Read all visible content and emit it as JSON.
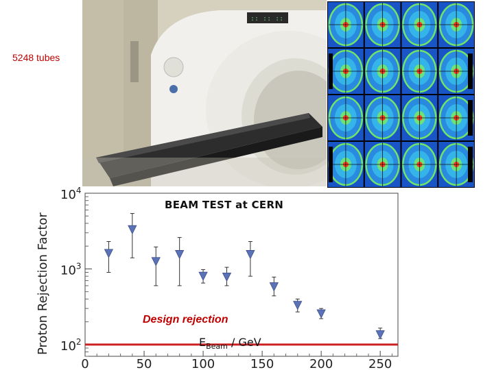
{
  "photo_label": "5248 tubes",
  "chart_data": {
    "type": "scatter",
    "title": "BEAM TEST at CERN",
    "ylabel": "Proton Rejection Factor",
    "xlabel_main": "E",
    "xlabel_sub": "Beam",
    "xlabel_rest": " / GeV",
    "log_y": true,
    "ylim": [
      70,
      10000
    ],
    "xlim": [
      0,
      265
    ],
    "x_ticks": [
      "0",
      "50",
      "100",
      "150",
      "200",
      "250"
    ],
    "y_ticks": [
      {
        "base": "10",
        "exp": "4"
      },
      {
        "base": "10",
        "exp": "3"
      },
      {
        "base": "10",
        "exp": "2"
      }
    ],
    "series": [
      {
        "x": [
          20,
          40,
          60,
          80,
          100,
          120,
          140,
          160,
          180,
          200,
          250
        ],
        "y": [
          1600,
          3300,
          1250,
          1550,
          800,
          780,
          1550,
          580,
          330,
          255,
          135
        ],
        "y_low": [
          900,
          1400,
          600,
          600,
          650,
          600,
          800,
          440,
          270,
          220,
          120
        ],
        "y_high": [
          2300,
          5400,
          1950,
          2600,
          980,
          1050,
          2300,
          780,
          400,
          300,
          165
        ]
      }
    ],
    "design_rejection_value": 100,
    "design_rejection_label": "Design rejection",
    "design_color": "#cc1f1f",
    "marker_color": "#5b72b6"
  }
}
